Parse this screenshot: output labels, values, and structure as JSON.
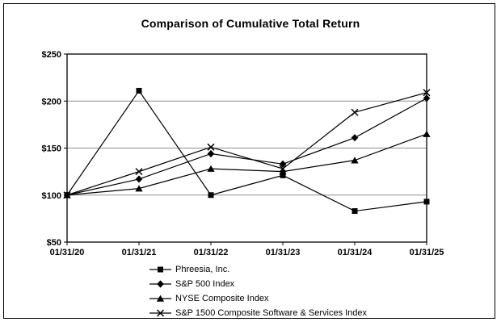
{
  "window": {
    "background": "#ffffff",
    "border_color": "#000000"
  },
  "chart_data": {
    "type": "line",
    "title": "Comparison of Cumulative Total Return",
    "xlabel": "",
    "ylabel": "",
    "x_categories": [
      "01/31/20",
      "01/31/21",
      "01/31/22",
      "01/31/23",
      "01/31/24",
      "01/31/25"
    ],
    "ylim": [
      50,
      250
    ],
    "y_tick_values": [
      50,
      100,
      150,
      200,
      250
    ],
    "y_tick_labels": [
      "$50",
      "$100",
      "$150",
      "$200",
      "$250"
    ],
    "y_tick_prefix": "$",
    "grid": true,
    "gridline_color": "#909090",
    "line_color": "#000000",
    "legend_position": "bottom",
    "series": [
      {
        "name": "Phreesia, Inc.",
        "marker": "square",
        "color": "#000000",
        "values": [
          100,
          211,
          100,
          121,
          83,
          93
        ]
      },
      {
        "name": "S&P 500 Index",
        "marker": "diamond",
        "color": "#000000",
        "values": [
          100,
          117,
          144,
          133,
          161,
          203
        ]
      },
      {
        "name": "NYSE Composite Index",
        "marker": "triangle",
        "color": "#000000",
        "values": [
          100,
          107,
          128,
          125,
          137,
          165
        ]
      },
      {
        "name": "S&P 1500 Composite Software & Services Index",
        "marker": "x",
        "color": "#000000",
        "values": [
          100,
          125,
          151,
          128,
          188,
          209
        ]
      }
    ]
  }
}
